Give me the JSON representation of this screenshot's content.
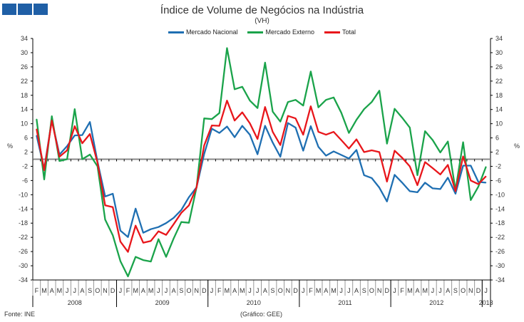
{
  "chart_data": {
    "type": "line",
    "title": "Índice de Volume de Negócios na Indústria",
    "subtitle": "(VH)",
    "ylabel": "%",
    "ylim": [
      -34,
      34
    ],
    "yticks": [
      34,
      30,
      26,
      22,
      18,
      14,
      10,
      6,
      2,
      -2,
      -6,
      -10,
      -14,
      -18,
      -22,
      -26,
      -30,
      -34
    ],
    "ytick_labels": [
      "34",
      "30",
      "26",
      "22",
      "18",
      "14",
      "10",
      "6",
      "2",
      "-2",
      "-6",
      "-10",
      "-14",
      "-18",
      "-22",
      "-26",
      "-30",
      "-34"
    ],
    "legend_placement": "top-center",
    "months": [
      "F",
      "M",
      "A",
      "M",
      "J",
      "J",
      "A",
      "S",
      "O",
      "N",
      "D",
      "J",
      "F",
      "M",
      "A",
      "M",
      "J",
      "J",
      "A",
      "S",
      "O",
      "N",
      "D",
      "J",
      "F",
      "M",
      "A",
      "M",
      "J",
      "J",
      "A",
      "S",
      "O",
      "N",
      "D",
      "J",
      "F",
      "M",
      "A",
      "M",
      "J",
      "J",
      "A",
      "S",
      "O",
      "N",
      "D",
      "J",
      "F",
      "M",
      "A",
      "M",
      "J",
      "J",
      "A",
      "S",
      "O",
      "N",
      "D",
      "J"
    ],
    "years": [
      {
        "label": "2008",
        "start": 0,
        "end": 10
      },
      {
        "label": "2009",
        "start": 11,
        "end": 22
      },
      {
        "label": "2010",
        "start": 23,
        "end": 34
      },
      {
        "label": "2011",
        "start": 35,
        "end": 46
      },
      {
        "label": "2012",
        "start": 47,
        "end": 58
      },
      {
        "label": "2013",
        "start": 59,
        "end": 59
      }
    ],
    "series": [
      {
        "name": "Mercado Nacional",
        "color": "#1f6fb2",
        "values": [
          6.7,
          -2.7,
          11,
          1.3,
          3.7,
          6.7,
          6.8,
          10.5,
          -0.7,
          -10.5,
          -9.7,
          -20.1,
          -21.9,
          -13.9,
          -20.7,
          -19.7,
          -19.1,
          -18,
          -16.5,
          -14.3,
          -10.7,
          -7.9,
          1.5,
          8.6,
          7.4,
          9.2,
          6.2,
          9.4,
          6.9,
          1.4,
          9.4,
          4.7,
          0.7,
          10.2,
          8.9,
          2.4,
          9.3,
          3.5,
          1,
          2.2,
          1.2,
          0.2,
          2.6,
          -4.5,
          -5.3,
          -8,
          -11.9,
          -4.4,
          -6.6,
          -9,
          -9.3,
          -6.6,
          -8.2,
          -8.4,
          -5.2,
          -9.7,
          -1.8,
          -1.8,
          -6.4,
          -6.6
        ]
      },
      {
        "name": "Mercado Externo",
        "color": "#1aa34a",
        "values": [
          11.3,
          -5.7,
          12.1,
          -0.5,
          0,
          14.1,
          0,
          1.3,
          -2,
          -17,
          -21.4,
          -28.7,
          -33,
          -27.5,
          -28.4,
          -28.8,
          -22.5,
          -27.5,
          -22.3,
          -17.7,
          -17.9,
          -7.9,
          11.5,
          11.3,
          13,
          31.3,
          19.7,
          20.4,
          16.5,
          14.4,
          27.2,
          13.4,
          10.6,
          16.1,
          16.7,
          15.1,
          24.7,
          14.6,
          16.7,
          17.4,
          13.1,
          7.4,
          11.1,
          14.1,
          16.1,
          19.3,
          4.4,
          14.2,
          11.7,
          8.9,
          -4.5,
          7.9,
          5.4,
          1.9,
          5,
          -8.7,
          4.8,
          -11.5,
          -7.7,
          -2.1
        ]
      },
      {
        "name": "Total",
        "color": "#e8161b",
        "values": [
          8.5,
          -3.1,
          10.9,
          0.7,
          2.5,
          9.3,
          4.5,
          7.1,
          -1,
          -13,
          -13.5,
          -23.2,
          -26.1,
          -18.7,
          -23.5,
          -23,
          -20.3,
          -21.3,
          -18.3,
          -15.1,
          -13,
          -7.9,
          3.9,
          9.5,
          9.4,
          16.5,
          10.9,
          13.2,
          10.1,
          5.7,
          14.7,
          7.7,
          4,
          12.2,
          11.5,
          6.9,
          14.9,
          7.7,
          6.9,
          7.7,
          5.4,
          3,
          5.6,
          2,
          2.5,
          2,
          -6.3,
          2.4,
          0.4,
          -2,
          -7.3,
          -0.8,
          -2.5,
          -4.3,
          -1.6,
          -9,
          0.8,
          -6,
          -7,
          -4.8
        ]
      }
    ]
  },
  "footer": {
    "source": "Fonte: INE",
    "credit": "(Gráfico:  GEE)"
  }
}
